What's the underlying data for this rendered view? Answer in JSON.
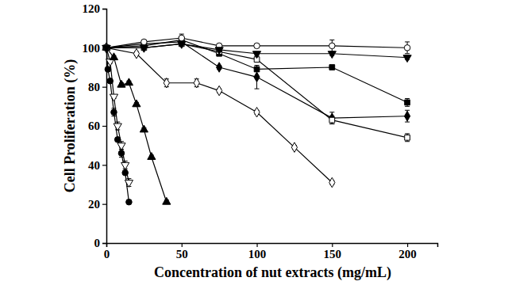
{
  "chart_data": {
    "type": "line",
    "x_label": "Concentration of nut extracts (mg/mL)",
    "y_label": "Cell Proliferation (%)",
    "xlim": [
      0,
      220
    ],
    "xticks": [
      0,
      50,
      100,
      150,
      200
    ],
    "ylim": [
      0,
      120
    ],
    "yticks": [
      0,
      20,
      40,
      60,
      80,
      100,
      120
    ],
    "grid": false,
    "series": [
      {
        "color": "#000000",
        "marker": "circle",
        "line_style": "solid",
        "x": [
          0,
          1,
          2.5,
          5,
          7.5,
          10,
          12.5,
          15
        ],
        "values": [
          100,
          89,
          83,
          67,
          53,
          46,
          36,
          21
        ],
        "errors": [
          1,
          1,
          1,
          2,
          1,
          2,
          1,
          1
        ]
      },
      {
        "color": "#000000",
        "marker": "triangle-down-open",
        "line_style": "solid",
        "x": [
          0,
          2.5,
          5,
          7.5,
          10,
          12.5,
          15
        ],
        "values": [
          100,
          93,
          75,
          60,
          50,
          40,
          31
        ],
        "errors": [
          1,
          1,
          1,
          2,
          2,
          2,
          2
        ]
      },
      {
        "color": "#000000",
        "marker": "triangle",
        "line_style": "solid",
        "x": [
          0,
          5,
          10,
          15,
          20,
          25,
          30,
          40
        ],
        "values": [
          100,
          95,
          81,
          82,
          71,
          58,
          44,
          21
        ],
        "errors": [
          1,
          1,
          1,
          1,
          1,
          1,
          1,
          1
        ]
      },
      {
        "color": "#000000",
        "marker": "diamond-open",
        "line_style": "solid",
        "x": [
          0,
          20,
          40,
          60,
          75,
          100,
          125,
          150
        ],
        "values": [
          100,
          97,
          82,
          82,
          78,
          67,
          49,
          31
        ],
        "errors": [
          1,
          1,
          2,
          2,
          1,
          1,
          1,
          1
        ]
      },
      {
        "color": "#000000",
        "marker": "diamond",
        "line_style": "solid",
        "x": [
          0,
          25,
          50,
          75,
          100,
          150,
          200
        ],
        "values": [
          100,
          102,
          103,
          90,
          85,
          64,
          65
        ],
        "errors": [
          1,
          1,
          1,
          1,
          6,
          3,
          3
        ]
      },
      {
        "color": "#000000",
        "marker": "square",
        "line_style": "solid",
        "x": [
          0,
          25,
          50,
          75,
          100,
          150,
          200
        ],
        "values": [
          100,
          101,
          104,
          97,
          89,
          90,
          72
        ],
        "errors": [
          1,
          1,
          1,
          1,
          1,
          1,
          2
        ]
      },
      {
        "color": "#000000",
        "marker": "square-open",
        "line_style": "solid",
        "x": [
          0,
          25,
          50,
          75,
          100,
          150,
          200
        ],
        "values": [
          100,
          100,
          102,
          98,
          94,
          63,
          54
        ],
        "errors": [
          1,
          1,
          1,
          1,
          1,
          2,
          2
        ]
      },
      {
        "color": "#000000",
        "marker": "circle-open",
        "line_style": "solid",
        "x": [
          0,
          25,
          50,
          75,
          100,
          150,
          200
        ],
        "values": [
          100,
          103,
          105,
          101,
          101,
          101,
          100
        ],
        "errors": [
          1,
          1,
          2,
          1,
          1,
          3,
          3
        ]
      },
      {
        "color": "#000000",
        "marker": "triangle-down",
        "line_style": "solid",
        "x": [
          0,
          25,
          50,
          75,
          100,
          150,
          200
        ],
        "values": [
          100,
          100,
          102,
          99,
          97,
          97,
          95
        ],
        "errors": [
          1,
          1,
          1,
          1,
          1,
          1,
          1
        ]
      }
    ]
  }
}
